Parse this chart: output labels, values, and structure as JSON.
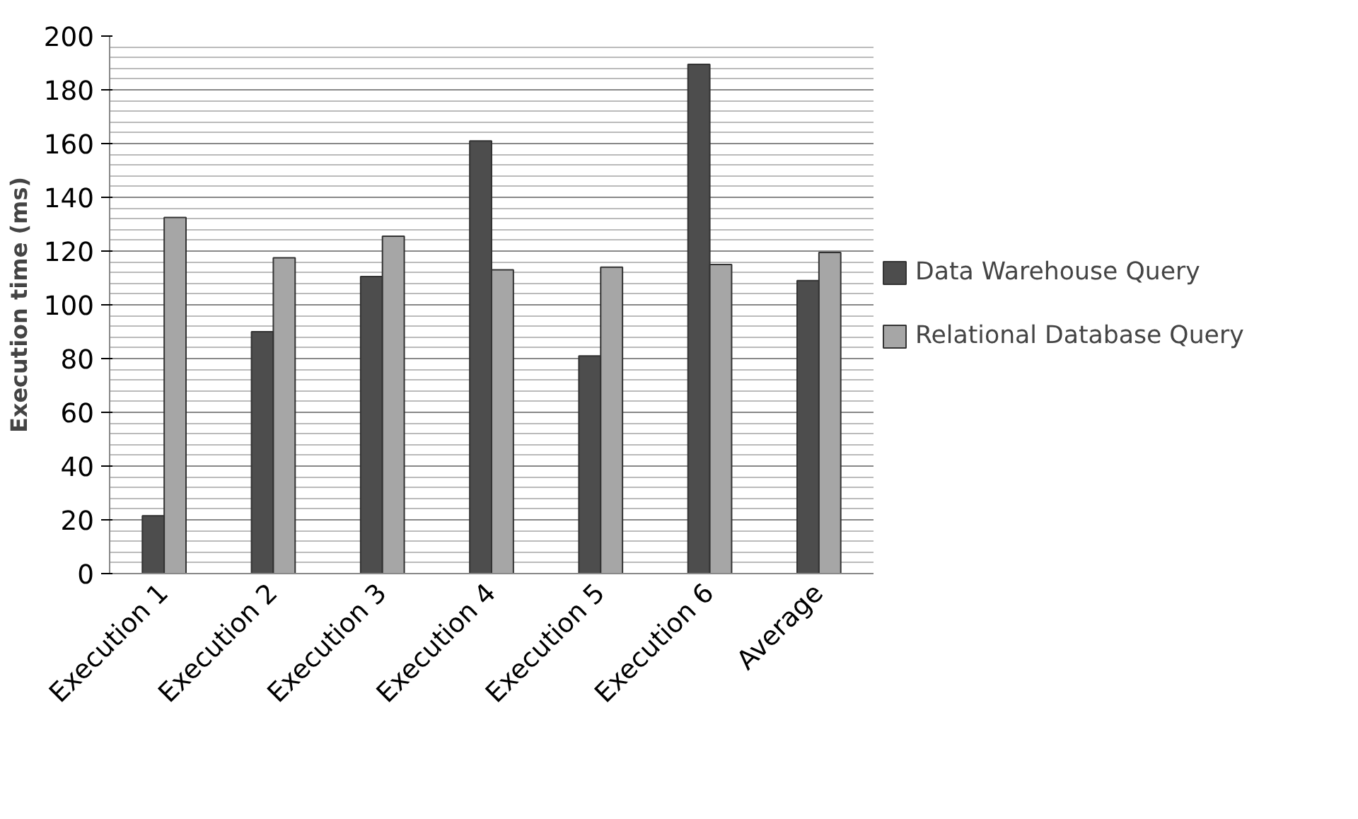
{
  "chart_data": {
    "type": "bar",
    "ylabel": "Execution time (ms)",
    "categories": [
      "Execution 1",
      "Execution 2",
      "Execution 3",
      "Execution 4",
      "Execution 5",
      "Execution 6",
      "Average"
    ],
    "series": [
      {
        "name": "Data Warehouse Query",
        "color": "#4d4d4d",
        "values": [
          21.5,
          90,
          110.5,
          161,
          81,
          189.5,
          109
        ]
      },
      {
        "name": "Relational Database Query",
        "color": "#a6a6a6",
        "values": [
          132.5,
          117.5,
          125.5,
          113,
          114,
          115,
          119.5
        ]
      }
    ],
    "ylim": [
      0,
      200
    ],
    "yticks": [
      0,
      20,
      40,
      60,
      80,
      100,
      120,
      140,
      160,
      180,
      200
    ],
    "grid": "y",
    "legend": "right"
  }
}
